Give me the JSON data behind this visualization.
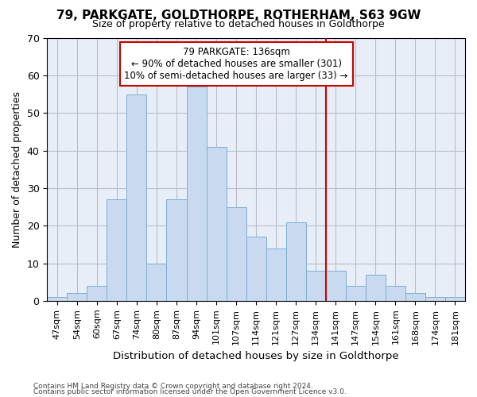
{
  "title": "79, PARKGATE, GOLDTHORPE, ROTHERHAM, S63 9GW",
  "subtitle": "Size of property relative to detached houses in Goldthorpe",
  "xlabel": "Distribution of detached houses by size in Goldthorpe",
  "ylabel": "Number of detached properties",
  "categories": [
    "47sqm",
    "54sqm",
    "60sqm",
    "67sqm",
    "74sqm",
    "80sqm",
    "87sqm",
    "94sqm",
    "101sqm",
    "107sqm",
    "114sqm",
    "121sqm",
    "127sqm",
    "134sqm",
    "141sqm",
    "147sqm",
    "154sqm",
    "161sqm",
    "168sqm",
    "174sqm",
    "181sqm"
  ],
  "values": [
    1,
    2,
    4,
    27,
    55,
    10,
    27,
    57,
    41,
    25,
    17,
    14,
    21,
    8,
    8,
    4,
    7,
    4,
    2,
    1,
    1
  ],
  "bar_color": "#c9daf0",
  "bar_edge_color": "#7bafd4",
  "bar_edge_width": 0.7,
  "vline_x_idx": 13.5,
  "vline_color": "#cc0000",
  "annotation_text": "79 PARKGATE: 136sqm\n← 90% of detached houses are smaller (301)\n10% of semi-detached houses are larger (33) →",
  "annotation_box_facecolor": "#ffffff",
  "annotation_box_edge": "#cc0000",
  "ylim": [
    0,
    70
  ],
  "yticks": [
    0,
    10,
    20,
    30,
    40,
    50,
    60,
    70
  ],
  "grid_color": "#bbbbcc",
  "background_color": "#e8eef8",
  "footer1": "Contains HM Land Registry data © Crown copyright and database right 2024.",
  "footer2": "Contains public sector information licensed under the Open Government Licence v3.0."
}
